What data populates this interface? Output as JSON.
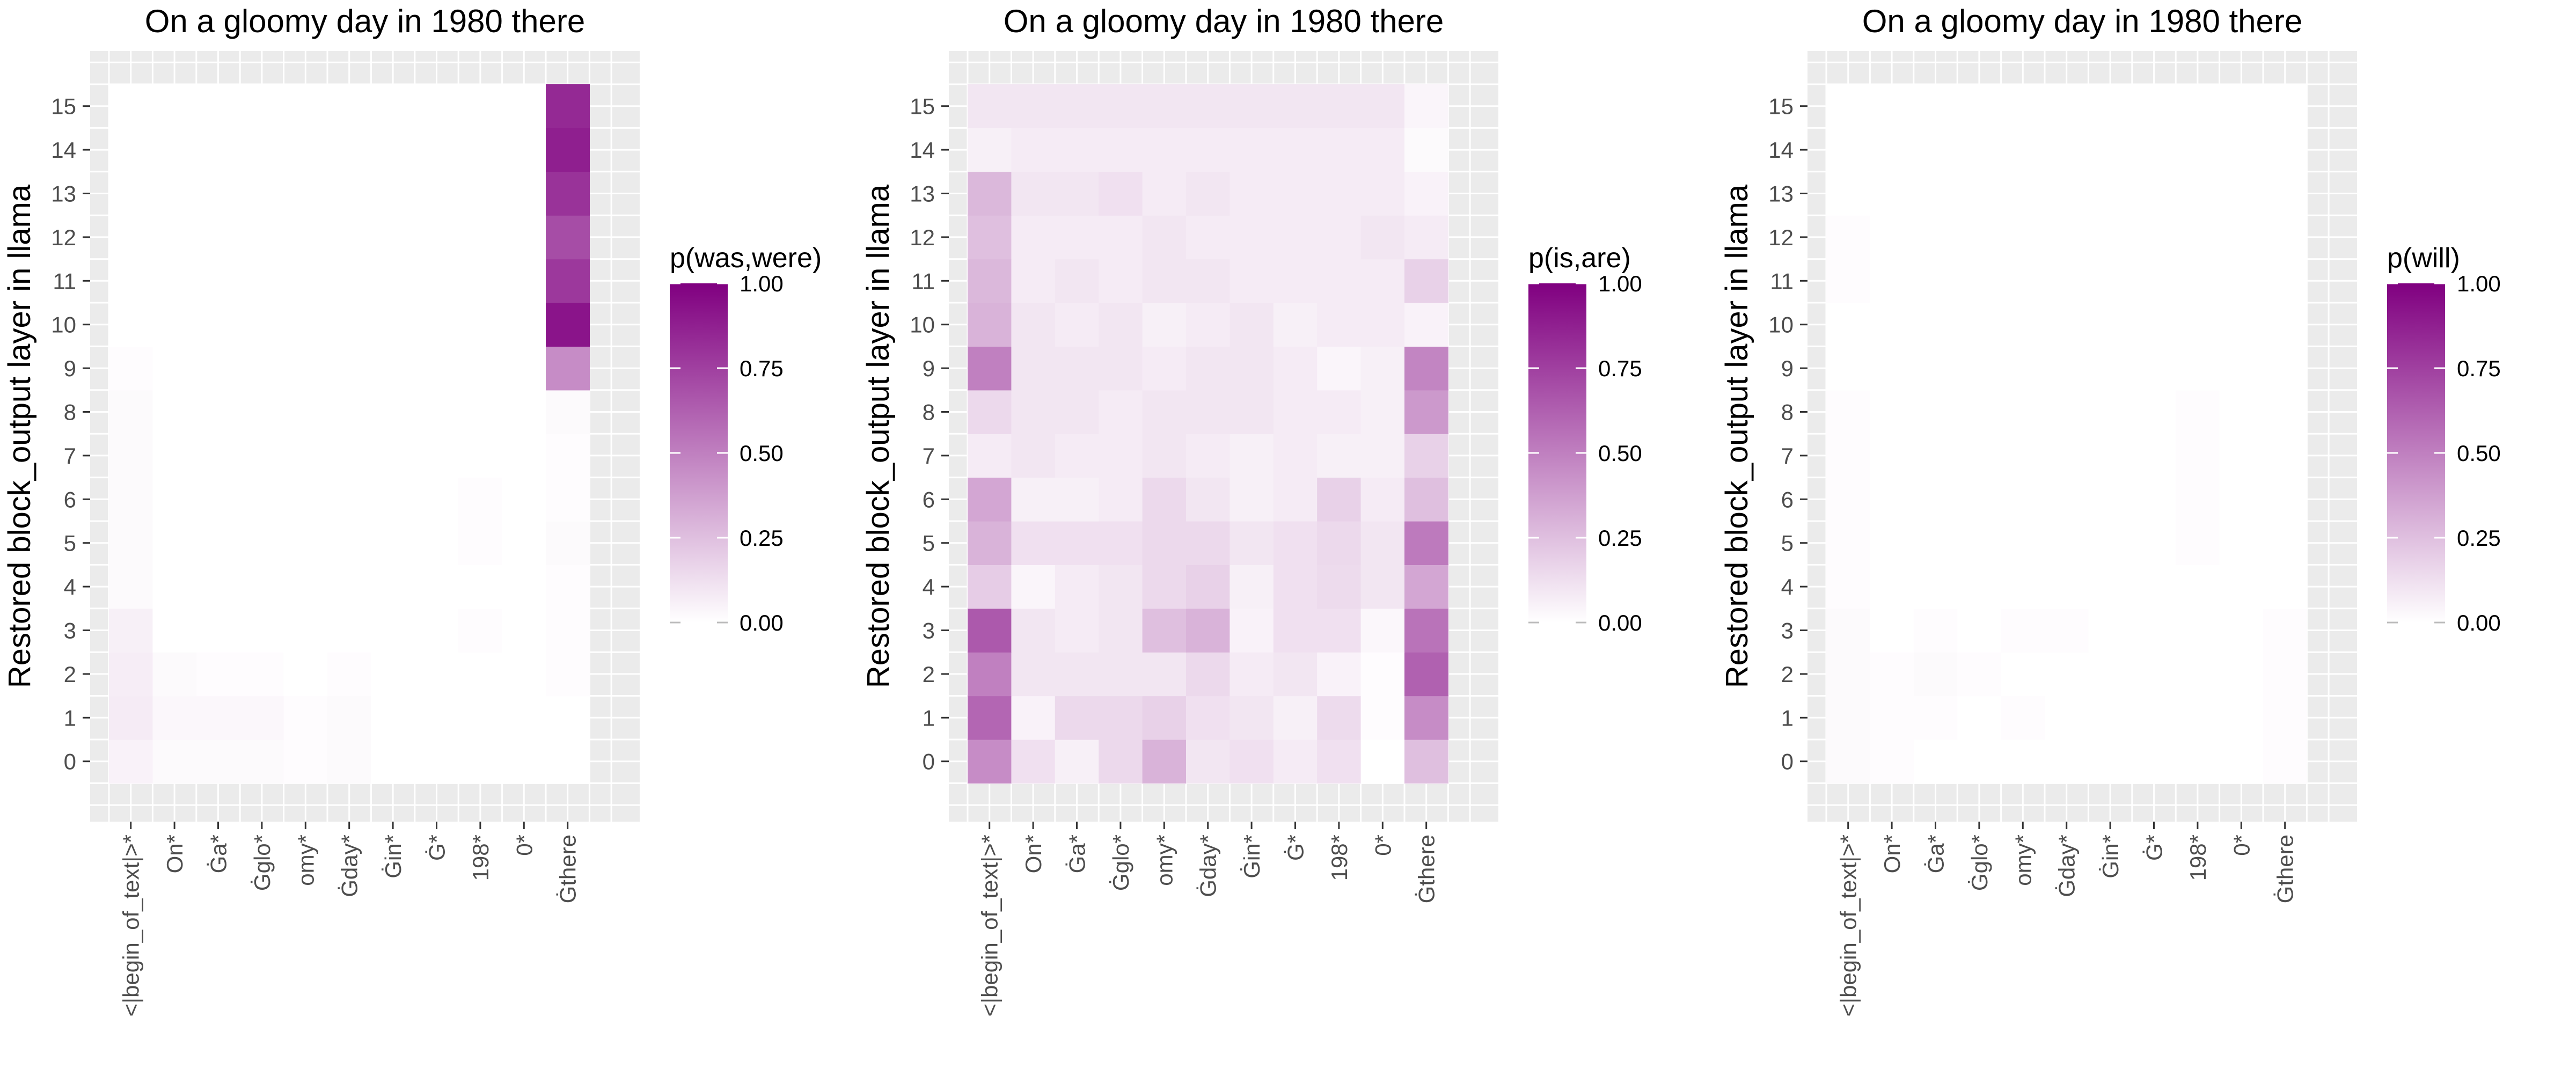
{
  "chart_data": [
    {
      "type": "heatmap",
      "title": "On a gloomy day in 1980 there",
      "xlabel": "",
      "ylabel": "Restored block_output layer in llama",
      "categories": [
        "<|begin_of_text|>*",
        "On*",
        "Ġa*",
        "Ġglo*",
        "omy*",
        "Ġday*",
        "Ġin*",
        "Ġ*",
        "198*",
        "0*",
        "Ġthere"
      ],
      "y": [
        0,
        1,
        2,
        3,
        4,
        5,
        6,
        7,
        8,
        9,
        10,
        11,
        12,
        13,
        14,
        15
      ],
      "legend_title": "p(was,were)",
      "legend_ticks": [
        "1.00",
        "0.75",
        "0.50",
        "0.25",
        "0.00"
      ],
      "colorscale": [
        "#ffffff",
        "#800080"
      ],
      "zlim": [
        0,
        1
      ],
      "grid": true,
      "legend_position": "right",
      "values": [
        [
          0.05,
          0.02,
          0.02,
          0.02,
          0.01,
          0.02,
          0.0,
          0.0,
          0.0,
          0.0,
          0.0
        ],
        [
          0.08,
          0.03,
          0.03,
          0.03,
          0.01,
          0.02,
          0.0,
          0.0,
          0.0,
          0.0,
          0.0
        ],
        [
          0.07,
          0.02,
          0.01,
          0.01,
          0.0,
          0.01,
          0.0,
          0.0,
          0.0,
          0.0,
          0.01
        ],
        [
          0.06,
          0.0,
          0.0,
          0.0,
          0.0,
          0.0,
          0.0,
          0.0,
          0.01,
          0.0,
          0.01
        ],
        [
          0.02,
          0.0,
          0.0,
          0.0,
          0.0,
          0.0,
          0.0,
          0.0,
          0.0,
          0.0,
          0.01
        ],
        [
          0.02,
          0.0,
          0.0,
          0.0,
          0.0,
          0.0,
          0.0,
          0.0,
          0.01,
          0.0,
          0.02
        ],
        [
          0.02,
          0.0,
          0.0,
          0.0,
          0.0,
          0.0,
          0.0,
          0.0,
          0.01,
          0.0,
          0.01
        ],
        [
          0.02,
          0.0,
          0.0,
          0.0,
          0.0,
          0.0,
          0.0,
          0.0,
          0.0,
          0.0,
          0.01
        ],
        [
          0.02,
          0.0,
          0.0,
          0.0,
          0.0,
          0.0,
          0.0,
          0.0,
          0.0,
          0.0,
          0.02
        ],
        [
          0.01,
          0.0,
          0.0,
          0.0,
          0.0,
          0.0,
          0.0,
          0.0,
          0.0,
          0.0,
          0.45
        ],
        [
          0.0,
          0.0,
          0.0,
          0.0,
          0.0,
          0.0,
          0.0,
          0.0,
          0.0,
          0.0,
          0.92
        ],
        [
          0.0,
          0.0,
          0.0,
          0.0,
          0.0,
          0.0,
          0.0,
          0.0,
          0.0,
          0.0,
          0.78
        ],
        [
          0.0,
          0.0,
          0.0,
          0.0,
          0.0,
          0.0,
          0.0,
          0.0,
          0.0,
          0.0,
          0.7
        ],
        [
          0.0,
          0.0,
          0.0,
          0.0,
          0.0,
          0.0,
          0.0,
          0.0,
          0.0,
          0.0,
          0.8
        ],
        [
          0.0,
          0.0,
          0.0,
          0.0,
          0.0,
          0.0,
          0.0,
          0.0,
          0.0,
          0.0,
          0.88
        ],
        [
          0.0,
          0.0,
          0.0,
          0.0,
          0.0,
          0.0,
          0.0,
          0.0,
          0.0,
          0.0,
          0.84
        ]
      ]
    },
    {
      "type": "heatmap",
      "title": "On a gloomy day in 1980 there",
      "xlabel": "",
      "ylabel": "Restored block_output layer in llama",
      "categories": [
        "<|begin_of_text|>*",
        "On*",
        "Ġa*",
        "Ġglo*",
        "omy*",
        "Ġday*",
        "Ġin*",
        "Ġ*",
        "198*",
        "0*",
        "Ġthere"
      ],
      "y": [
        0,
        1,
        2,
        3,
        4,
        5,
        6,
        7,
        8,
        9,
        10,
        11,
        12,
        13,
        14,
        15
      ],
      "legend_title": "p(is,are)",
      "legend_ticks": [
        "1.00",
        "0.75",
        "0.50",
        "0.25",
        "0.00"
      ],
      "colorscale": [
        "#ffffff",
        "#800080"
      ],
      "zlim": [
        0,
        1
      ],
      "grid": true,
      "legend_position": "right",
      "values": [
        [
          0.45,
          0.12,
          0.06,
          0.15,
          0.3,
          0.1,
          0.12,
          0.08,
          0.12,
          0.0,
          0.25
        ],
        [
          0.6,
          0.05,
          0.15,
          0.15,
          0.18,
          0.12,
          0.1,
          0.06,
          0.14,
          0.01,
          0.45
        ],
        [
          0.5,
          0.1,
          0.1,
          0.1,
          0.1,
          0.15,
          0.08,
          0.1,
          0.05,
          0.01,
          0.62
        ],
        [
          0.65,
          0.1,
          0.08,
          0.1,
          0.25,
          0.3,
          0.05,
          0.12,
          0.12,
          0.03,
          0.55
        ],
        [
          0.2,
          0.04,
          0.08,
          0.1,
          0.15,
          0.18,
          0.06,
          0.12,
          0.14,
          0.1,
          0.35
        ],
        [
          0.3,
          0.12,
          0.12,
          0.12,
          0.15,
          0.15,
          0.1,
          0.12,
          0.15,
          0.1,
          0.52
        ],
        [
          0.35,
          0.06,
          0.06,
          0.08,
          0.15,
          0.1,
          0.06,
          0.08,
          0.18,
          0.08,
          0.25
        ],
        [
          0.08,
          0.1,
          0.08,
          0.08,
          0.1,
          0.08,
          0.06,
          0.08,
          0.06,
          0.06,
          0.18
        ],
        [
          0.15,
          0.1,
          0.1,
          0.08,
          0.1,
          0.1,
          0.1,
          0.08,
          0.08,
          0.06,
          0.4
        ],
        [
          0.5,
          0.1,
          0.1,
          0.1,
          0.08,
          0.1,
          0.1,
          0.08,
          0.04,
          0.06,
          0.48
        ],
        [
          0.3,
          0.1,
          0.08,
          0.1,
          0.06,
          0.08,
          0.1,
          0.06,
          0.08,
          0.08,
          0.05
        ],
        [
          0.28,
          0.08,
          0.1,
          0.08,
          0.1,
          0.1,
          0.08,
          0.08,
          0.08,
          0.08,
          0.18
        ],
        [
          0.25,
          0.08,
          0.08,
          0.08,
          0.1,
          0.08,
          0.08,
          0.08,
          0.08,
          0.1,
          0.08
        ],
        [
          0.28,
          0.1,
          0.1,
          0.12,
          0.08,
          0.1,
          0.08,
          0.08,
          0.08,
          0.08,
          0.05
        ],
        [
          0.06,
          0.08,
          0.08,
          0.08,
          0.08,
          0.08,
          0.08,
          0.08,
          0.08,
          0.08,
          0.02
        ],
        [
          0.1,
          0.1,
          0.1,
          0.1,
          0.1,
          0.1,
          0.1,
          0.1,
          0.1,
          0.1,
          0.04
        ]
      ]
    },
    {
      "type": "heatmap",
      "title": "On a gloomy day in 1980 there",
      "xlabel": "",
      "ylabel": "Restored block_output layer in llama",
      "categories": [
        "<|begin_of_text|>*",
        "On*",
        "Ġa*",
        "Ġglo*",
        "omy*",
        "Ġday*",
        "Ġin*",
        "Ġ*",
        "198*",
        "0*",
        "Ġthere"
      ],
      "y": [
        0,
        1,
        2,
        3,
        4,
        5,
        6,
        7,
        8,
        9,
        10,
        11,
        12,
        13,
        14,
        15
      ],
      "legend_title": "p(will)",
      "legend_ticks": [
        "1.00",
        "0.75",
        "0.50",
        "0.25",
        "0.00"
      ],
      "colorscale": [
        "#ffffff",
        "#800080"
      ],
      "zlim": [
        0,
        1
      ],
      "grid": true,
      "legend_position": "right",
      "values": [
        [
          0.02,
          0.01,
          0.0,
          0.0,
          0.0,
          0.0,
          0.0,
          0.0,
          0.0,
          0.0,
          0.01
        ],
        [
          0.02,
          0.01,
          0.01,
          0.0,
          0.01,
          0.0,
          0.0,
          0.0,
          0.0,
          0.0,
          0.01
        ],
        [
          0.02,
          0.01,
          0.02,
          0.01,
          0.0,
          0.0,
          0.0,
          0.0,
          0.0,
          0.0,
          0.01
        ],
        [
          0.02,
          0.0,
          0.01,
          0.0,
          0.01,
          0.01,
          0.0,
          0.0,
          0.0,
          0.0,
          0.01
        ],
        [
          0.01,
          0.0,
          0.0,
          0.0,
          0.0,
          0.0,
          0.0,
          0.0,
          0.0,
          0.0,
          0.0
        ],
        [
          0.01,
          0.0,
          0.0,
          0.0,
          0.0,
          0.0,
          0.0,
          0.0,
          0.01,
          0.0,
          0.0
        ],
        [
          0.01,
          0.0,
          0.0,
          0.0,
          0.0,
          0.0,
          0.0,
          0.0,
          0.01,
          0.0,
          0.0
        ],
        [
          0.01,
          0.0,
          0.0,
          0.0,
          0.0,
          0.0,
          0.0,
          0.0,
          0.01,
          0.0,
          0.0
        ],
        [
          0.01,
          0.0,
          0.0,
          0.0,
          0.0,
          0.0,
          0.0,
          0.0,
          0.01,
          0.0,
          0.0
        ],
        [
          0.0,
          0.0,
          0.0,
          0.0,
          0.0,
          0.0,
          0.0,
          0.0,
          0.0,
          0.0,
          0.0
        ],
        [
          0.0,
          0.0,
          0.0,
          0.0,
          0.0,
          0.0,
          0.0,
          0.0,
          0.0,
          0.0,
          0.0
        ],
        [
          0.01,
          0.0,
          0.0,
          0.0,
          0.0,
          0.0,
          0.0,
          0.0,
          0.0,
          0.0,
          0.0
        ],
        [
          0.01,
          0.0,
          0.0,
          0.0,
          0.0,
          0.0,
          0.0,
          0.0,
          0.0,
          0.0,
          0.0
        ],
        [
          0.0,
          0.0,
          0.0,
          0.0,
          0.0,
          0.0,
          0.0,
          0.0,
          0.0,
          0.0,
          0.0
        ],
        [
          0.0,
          0.0,
          0.0,
          0.0,
          0.0,
          0.0,
          0.0,
          0.0,
          0.0,
          0.0,
          0.0
        ],
        [
          0.0,
          0.0,
          0.0,
          0.0,
          0.0,
          0.0,
          0.0,
          0.0,
          0.0,
          0.0,
          0.0
        ]
      ]
    }
  ]
}
